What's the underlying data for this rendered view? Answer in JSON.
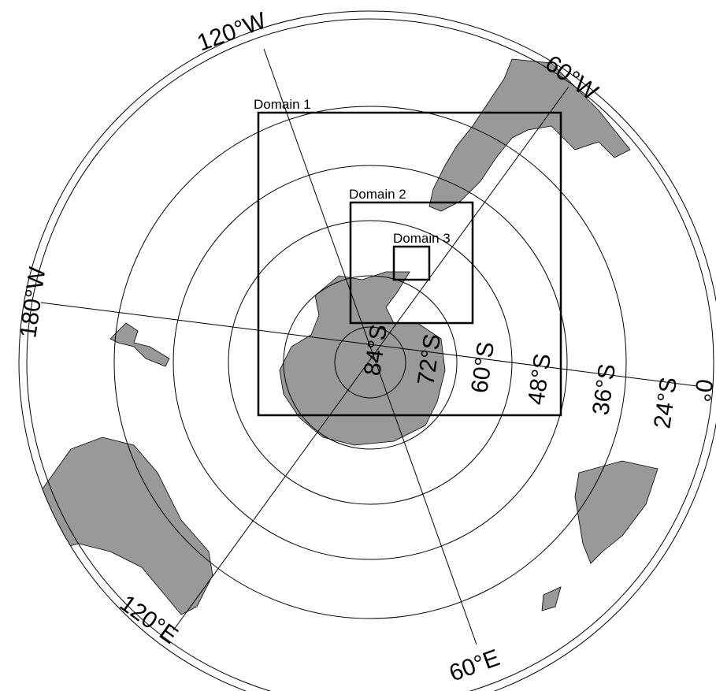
{
  "longitude_labels": [
    "120°W",
    "60°W",
    "180°W",
    "0°",
    "120°E",
    "60°E"
  ],
  "latitude_labels": [
    "84°S",
    "72°S",
    "60°S",
    "48°S",
    "36°S",
    "24°S"
  ],
  "domains": [
    "Domain 1",
    "Domain 2",
    "Domain 3"
  ]
}
